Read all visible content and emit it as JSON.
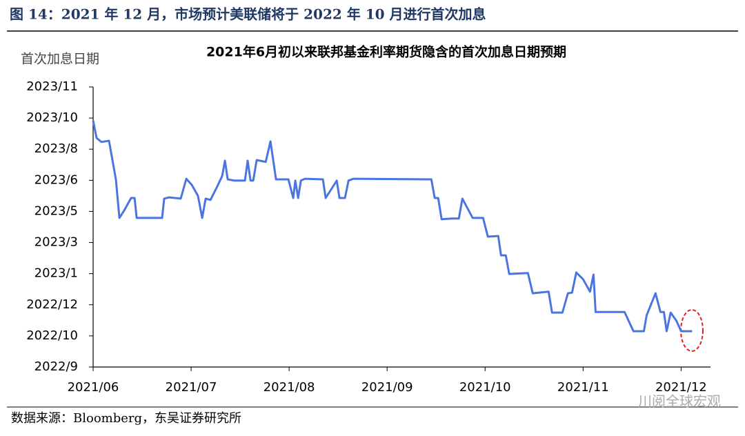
{
  "header": {
    "title": "图 14：2021 年 12 月，市场预计美联储将于 2022 年 10 月进行首次加息"
  },
  "source": "数据来源：Bloomberg，东吴证券研究所",
  "watermark": "川阅全球宏观",
  "chart_data": {
    "type": "line",
    "title": "2021年6月初以来联邦基金利率期货隐含的首次加息日期预期",
    "ylabel": "首次加息日期",
    "color": "#4a74e0",
    "x": [
      0,
      0.035,
      0.085,
      0.162,
      0.232,
      0.268,
      0.317,
      0.387,
      0.423,
      0.444,
      0.704,
      0.725,
      0.775,
      0.894,
      0.951,
      1.007,
      1.07,
      1.113,
      1.148,
      1.197,
      1.268,
      1.317,
      1.345,
      1.373,
      1.444,
      1.549,
      1.577,
      1.606,
      1.634,
      1.669,
      1.761,
      1.81,
      1.866,
      1.993,
      2.042,
      2.063,
      2.092,
      2.12,
      2.162,
      2.345,
      2.373,
      2.486,
      2.514,
      2.57,
      2.606,
      2.655,
      3.451,
      3.486,
      3.521,
      3.556,
      3.662,
      3.732,
      3.768,
      3.873,
      3.979,
      4.028,
      4.134,
      4.162,
      4.211,
      4.246,
      4.437,
      4.486,
      4.648,
      4.683,
      4.789,
      4.845,
      4.887,
      4.93,
      5.0,
      5.07,
      5.106,
      5.127,
      5.423,
      5.514,
      5.62,
      5.648,
      5.739,
      5.789,
      5.824,
      5.852,
      5.894,
      5.951,
      6.0,
      6.113
    ],
    "values": [
      7.92,
      7.36,
      7.23,
      7.27,
      6.03,
      4.79,
      5.03,
      5.43,
      5.43,
      4.79,
      4.79,
      5.41,
      5.45,
      5.41,
      6.05,
      5.85,
      5.5,
      4.79,
      5.41,
      5.37,
      5.81,
      6.14,
      6.63,
      6.03,
      5.99,
      5.99,
      6.63,
      5.99,
      5.99,
      6.65,
      6.59,
      7.25,
      6.03,
      6.03,
      5.43,
      5.99,
      5.43,
      5.99,
      6.05,
      6.03,
      5.43,
      5.99,
      5.43,
      5.43,
      5.99,
      6.05,
      6.03,
      5.43,
      5.43,
      4.75,
      4.77,
      4.77,
      5.41,
      4.79,
      4.79,
      4.19,
      4.21,
      3.59,
      3.59,
      2.99,
      3.02,
      2.37,
      2.42,
      1.75,
      1.75,
      2.37,
      2.39,
      3.04,
      2.82,
      2.42,
      2.97,
      1.77,
      1.77,
      1.15,
      1.15,
      1.66,
      2.37,
      1.77,
      1.77,
      1.15,
      1.75,
      1.49,
      1.15,
      1.15
    ],
    "xlim": [
      0,
      6.3
    ],
    "xticks": [
      {
        "value": 0,
        "label": "2021/06"
      },
      {
        "value": 1,
        "label": "2021/07"
      },
      {
        "value": 2,
        "label": "2021/08"
      },
      {
        "value": 3,
        "label": "2021/09"
      },
      {
        "value": 4,
        "label": "2021/10"
      },
      {
        "value": 5,
        "label": "2021/11"
      },
      {
        "value": 6,
        "label": "2021/12"
      }
    ],
    "ylim": [
      0,
      9
    ],
    "yticks": [
      {
        "value": 0,
        "label": "2022/9"
      },
      {
        "value": 1,
        "label": "2022/10"
      },
      {
        "value": 2,
        "label": "2022/12"
      },
      {
        "value": 3,
        "label": "2023/1"
      },
      {
        "value": 4,
        "label": "2023/3"
      },
      {
        "value": 5,
        "label": "2023/5"
      },
      {
        "value": 6,
        "label": "2023/6"
      },
      {
        "value": 7,
        "label": "2023/8"
      },
      {
        "value": 8,
        "label": "2023/10"
      },
      {
        "value": 9,
        "label": "2023/11"
      }
    ]
  }
}
